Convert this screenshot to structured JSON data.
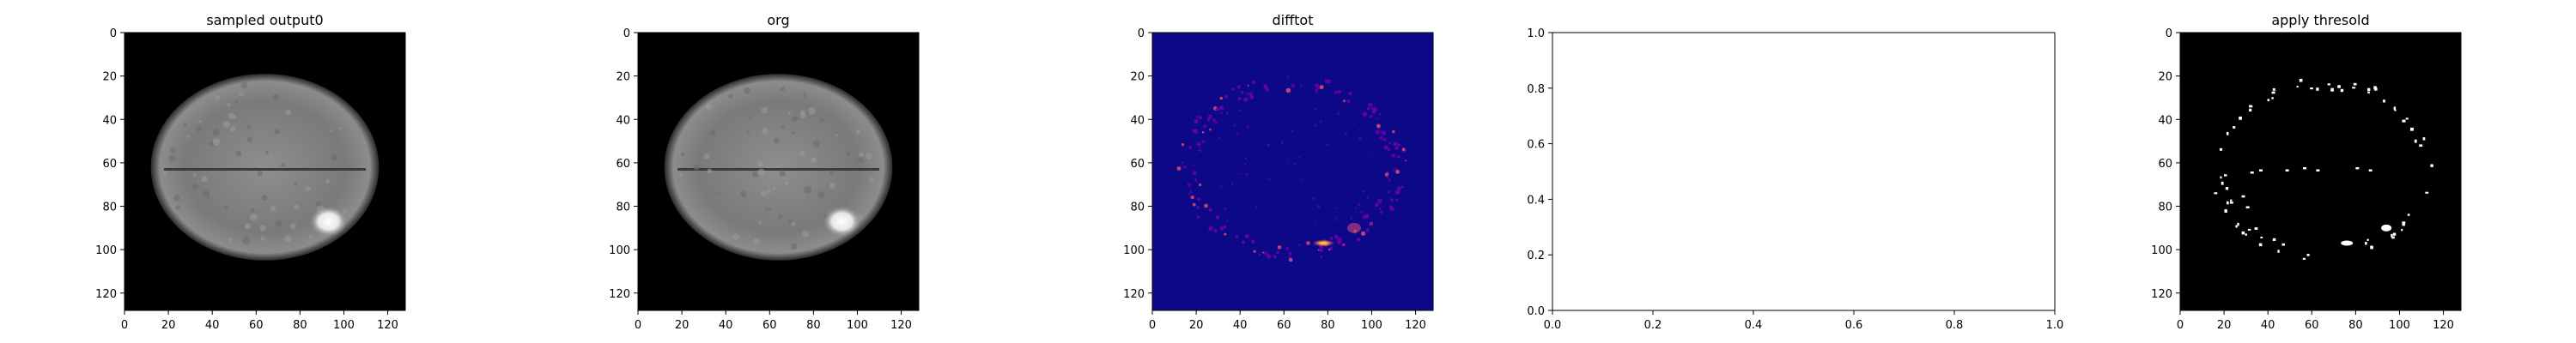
{
  "chart_data": [
    {
      "type": "image",
      "title": "sampled output0",
      "colormap": "gray",
      "xlim": [
        0,
        128
      ],
      "ylim": [
        128,
        0
      ],
      "xticks": [
        "0",
        "20",
        "40",
        "60",
        "80",
        "100",
        "120"
      ],
      "yticks": [
        "0",
        "20",
        "40",
        "60",
        "80",
        "100",
        "120"
      ],
      "content": "grayscale brain slice with bright lesion near x=92, y=88"
    },
    {
      "type": "image",
      "title": "org",
      "colormap": "gray",
      "xlim": [
        0,
        128
      ],
      "ylim": [
        128,
        0
      ],
      "xticks": [
        "0",
        "20",
        "40",
        "60",
        "80",
        "100",
        "120"
      ],
      "yticks": [
        "0",
        "20",
        "40",
        "60",
        "80",
        "100",
        "120"
      ],
      "content": "grayscale brain slice with bright lesion near x=92, y=88"
    },
    {
      "type": "image",
      "title": "difftot",
      "colormap": "plasma",
      "xlim": [
        0,
        128
      ],
      "ylim": [
        128,
        0
      ],
      "xticks": [
        "0",
        "20",
        "40",
        "60",
        "80",
        "100",
        "120"
      ],
      "yticks": [
        "0",
        "20",
        "40",
        "60",
        "80",
        "100",
        "120"
      ],
      "content": "difference map; speckle along brain outline, hot spot near x=78, y=97"
    },
    {
      "type": "empty",
      "title": "",
      "xlim": [
        0,
        1
      ],
      "ylim": [
        0,
        1
      ],
      "xticks": [
        "0.0",
        "0.2",
        "0.4",
        "0.6",
        "0.8",
        "1.0"
      ],
      "yticks": [
        "0.0",
        "0.2",
        "0.4",
        "0.6",
        "0.8",
        "1.0"
      ]
    },
    {
      "type": "image",
      "title": "apply thresold",
      "colormap": "binary",
      "xlim": [
        0,
        128
      ],
      "ylim": [
        128,
        0
      ],
      "xticks": [
        "0",
        "20",
        "40",
        "60",
        "80",
        "100",
        "120"
      ],
      "yticks": [
        "0",
        "20",
        "40",
        "60",
        "80",
        "100",
        "120"
      ],
      "content": "thresholded mask; white specks along brain outline, blob near x=76, y=97"
    }
  ],
  "colors": {
    "background": "#000000",
    "plasma_low": "#0d0887",
    "plasma_mid": "#cc4778",
    "plasma_high": "#f0f921",
    "mask": "#ffffff"
  }
}
